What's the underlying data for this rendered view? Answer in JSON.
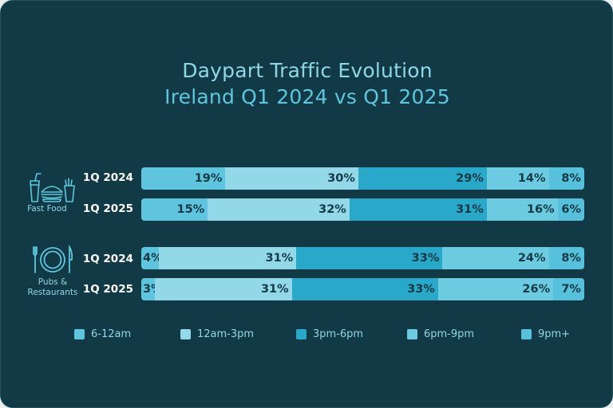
{
  "chart_data": {
    "type": "bar",
    "orientation": "horizontal-stacked-100",
    "title": "Daypart Traffic Evolution",
    "subtitle": "Ireland Q1 2024 vs Q1 2025",
    "series": [
      {
        "name": "6-12am",
        "color": "#5fc4dd"
      },
      {
        "name": "12am-3pm",
        "color": "#93d8e8"
      },
      {
        "name": "3pm-6pm",
        "color": "#2aa8c9"
      },
      {
        "name": "6pm-9pm",
        "color": "#6ccbe1"
      },
      {
        "name": "9pm+",
        "color": "#57c0da"
      }
    ],
    "groups": [
      {
        "name": "Fast Food",
        "icon": "fast-food-icon",
        "rows": [
          {
            "label": "1Q 2024",
            "values": [
              19,
              30,
              29,
              14,
              8
            ]
          },
          {
            "label": "1Q 2025",
            "values": [
              15,
              32,
              31,
              16,
              6
            ]
          }
        ]
      },
      {
        "name": "Pubs & Restaurants",
        "name_lines": [
          "Pubs &",
          "Restaurants"
        ],
        "icon": "plate-cutlery-icon",
        "rows": [
          {
            "label": "1Q 2024",
            "values": [
              4,
              31,
              33,
              24,
              8
            ]
          },
          {
            "label": "1Q 2025",
            "values": [
              3,
              31,
              33,
              26,
              7
            ]
          }
        ]
      }
    ],
    "value_suffix": "%",
    "xlim": [
      0,
      100
    ]
  }
}
